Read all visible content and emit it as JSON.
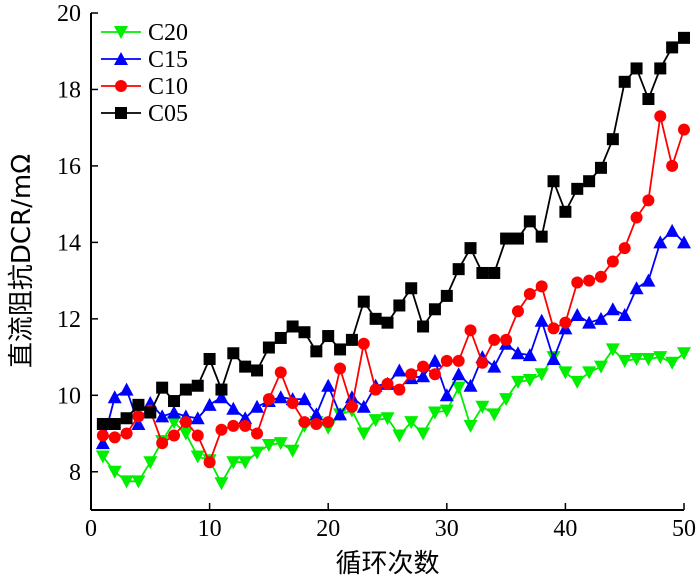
{
  "chart_data": {
    "type": "line",
    "title": "",
    "xlabel": "循环次数",
    "ylabel": "直流阻抗DCR/mΩ",
    "xlim": [
      0,
      50
    ],
    "ylim": [
      7,
      20
    ],
    "xticks": [
      0,
      10,
      20,
      30,
      40,
      50
    ],
    "yticks": [
      8,
      10,
      12,
      14,
      16,
      18,
      20
    ],
    "grid": false,
    "legend_position": "top-left",
    "x": [
      1,
      2,
      3,
      4,
      5,
      6,
      7,
      8,
      9,
      10,
      11,
      12,
      13,
      14,
      15,
      16,
      17,
      18,
      19,
      20,
      21,
      22,
      23,
      24,
      25,
      26,
      27,
      28,
      29,
      30,
      31,
      32,
      33,
      34,
      35,
      36,
      37,
      38,
      39,
      40,
      41,
      42,
      43,
      44,
      45,
      46,
      47,
      48,
      49,
      50
    ],
    "series": [
      {
        "name": "C20",
        "color": "#00ee00",
        "marker": "triangle-down",
        "values": [
          8.4,
          8.0,
          7.75,
          7.75,
          8.25,
          8.8,
          9.3,
          9.0,
          8.4,
          8.3,
          7.7,
          8.25,
          8.25,
          8.5,
          8.7,
          8.75,
          8.55,
          9.2,
          9.3,
          9.15,
          9.5,
          9.6,
          9.0,
          9.35,
          9.4,
          8.95,
          9.3,
          9.0,
          9.55,
          9.6,
          10.2,
          9.2,
          9.7,
          9.5,
          9.9,
          10.35,
          10.4,
          10.55,
          11.0,
          10.6,
          10.35,
          10.6,
          10.75,
          11.2,
          10.9,
          10.95,
          10.95,
          11.0,
          10.85,
          11.1
        ]
      },
      {
        "name": "C15",
        "color": "#0000ff",
        "marker": "triangle-up",
        "values": [
          8.75,
          9.95,
          10.15,
          9.25,
          9.8,
          9.45,
          9.55,
          9.45,
          9.4,
          9.75,
          9.95,
          9.65,
          9.4,
          9.7,
          9.85,
          9.95,
          9.9,
          9.9,
          9.5,
          10.25,
          9.5,
          9.95,
          9.7,
          10.25,
          10.3,
          10.65,
          10.45,
          10.5,
          10.9,
          10.0,
          10.55,
          10.25,
          11.0,
          10.75,
          11.35,
          11.1,
          11.05,
          11.95,
          10.95,
          11.75,
          12.1,
          11.9,
          12.0,
          12.25,
          12.1,
          12.8,
          13.0,
          14.0,
          14.3,
          14.0
        ]
      },
      {
        "name": "C10",
        "color": "#ff0000",
        "marker": "circle",
        "values": [
          8.95,
          8.9,
          9.0,
          9.45,
          9.6,
          8.75,
          8.95,
          9.3,
          8.95,
          8.25,
          9.1,
          9.2,
          9.2,
          9.0,
          9.9,
          10.6,
          9.8,
          9.3,
          9.25,
          9.3,
          10.7,
          9.7,
          11.35,
          10.15,
          10.3,
          10.15,
          10.55,
          10.75,
          10.55,
          10.9,
          10.9,
          11.7,
          10.85,
          11.45,
          11.45,
          12.2,
          12.65,
          12.85,
          11.75,
          11.9,
          12.95,
          13.0,
          13.1,
          13.5,
          13.85,
          14.65,
          15.1,
          17.3,
          16.0,
          16.95
        ]
      },
      {
        "name": "C05",
        "color": "#000000",
        "marker": "square",
        "values": [
          9.25,
          9.25,
          9.4,
          9.75,
          9.55,
          10.2,
          9.85,
          10.15,
          10.25,
          10.95,
          10.15,
          11.1,
          10.75,
          10.65,
          11.25,
          11.5,
          11.8,
          11.65,
          11.15,
          11.55,
          11.2,
          11.45,
          12.45,
          12.0,
          11.9,
          12.35,
          12.8,
          11.8,
          12.25,
          12.6,
          13.3,
          13.85,
          13.2,
          13.2,
          14.1,
          14.1,
          14.55,
          14.15,
          15.6,
          14.8,
          15.4,
          15.6,
          15.95,
          16.7,
          18.2,
          18.55,
          17.75,
          18.55,
          19.1,
          19.35
        ]
      }
    ]
  }
}
